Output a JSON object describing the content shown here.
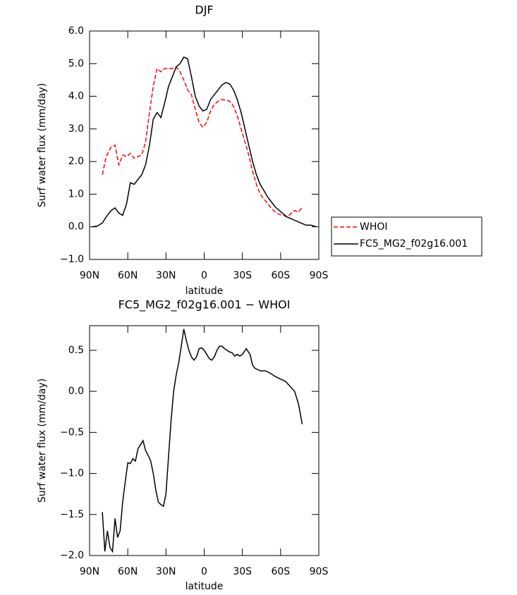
{
  "chart_data": [
    {
      "type": "line",
      "title": "DJF",
      "x_label": "latitude",
      "y_label": "Surf water flux (mm/day)",
      "x": [
        88,
        84,
        80,
        77,
        73,
        70,
        67,
        64,
        61,
        58,
        55,
        52,
        49,
        46,
        43,
        40,
        37,
        34,
        31,
        28,
        25,
        22,
        19,
        16,
        13,
        10,
        7,
        4,
        1,
        -2,
        -5,
        -8,
        -11,
        -14,
        -17,
        -20,
        -23,
        -26,
        -29,
        -32,
        -35,
        -38,
        -41,
        -44,
        -47,
        -50,
        -53,
        -56,
        -59,
        -62,
        -65,
        -68,
        -71,
        -74,
        -77,
        -80,
        -84,
        -88
      ],
      "series": [
        {
          "name": "WHOI",
          "color": "#ff0000",
          "dash": true,
          "values": [
            null,
            null,
            1.6,
            2.15,
            2.45,
            2.5,
            1.9,
            2.2,
            2.15,
            2.25,
            2.1,
            2.15,
            2.2,
            2.6,
            3.5,
            4.3,
            4.85,
            4.75,
            4.85,
            4.85,
            4.85,
            4.9,
            4.75,
            4.5,
            4.2,
            4.05,
            3.6,
            3.2,
            3.05,
            3.2,
            3.55,
            3.75,
            3.85,
            3.9,
            3.88,
            3.85,
            3.7,
            3.4,
            3.0,
            2.6,
            2.2,
            1.7,
            1.3,
            1.0,
            0.85,
            0.7,
            0.55,
            0.45,
            0.38,
            0.35,
            0.3,
            0.4,
            0.5,
            0.45,
            0.6,
            null,
            null,
            null
          ]
        },
        {
          "name": "FC5_MG2_f02g16.001",
          "color": "#000000",
          "dash": false,
          "values": [
            0.0,
            0.02,
            0.12,
            0.3,
            0.5,
            0.58,
            0.42,
            0.35,
            0.7,
            1.35,
            1.3,
            1.45,
            1.6,
            1.9,
            2.5,
            3.3,
            3.5,
            3.35,
            3.8,
            4.3,
            4.6,
            4.9,
            5.0,
            5.2,
            5.15,
            4.6,
            4.0,
            3.7,
            3.55,
            3.6,
            3.9,
            4.05,
            4.2,
            4.35,
            4.42,
            4.38,
            4.2,
            3.9,
            3.5,
            3.0,
            2.5,
            2.0,
            1.6,
            1.3,
            1.1,
            0.9,
            0.75,
            0.6,
            0.5,
            0.4,
            0.3,
            0.25,
            0.2,
            0.15,
            0.1,
            0.05,
            0.05,
            0.0
          ]
        }
      ],
      "xlim": [
        90,
        -90
      ],
      "xticks": [
        {
          "value": 90,
          "label": "90N"
        },
        {
          "value": 60,
          "label": "60N"
        },
        {
          "value": 30,
          "label": "30N"
        },
        {
          "value": 0,
          "label": "0"
        },
        {
          "value": -30,
          "label": "30S"
        },
        {
          "value": -60,
          "label": "60S"
        },
        {
          "value": -90,
          "label": "90S"
        }
      ],
      "ylim": [
        -1,
        6
      ],
      "yticks": [
        {
          "value": -1,
          "label": "−1.0"
        },
        {
          "value": 0,
          "label": "0.0"
        },
        {
          "value": 1,
          "label": "1.0"
        },
        {
          "value": 2,
          "label": "2.0"
        },
        {
          "value": 3,
          "label": "3.0"
        },
        {
          "value": 4,
          "label": "4.0"
        },
        {
          "value": 5,
          "label": "5.0"
        },
        {
          "value": 6,
          "label": "6.0"
        }
      ],
      "legend": "right"
    },
    {
      "type": "line",
      "title": "FC5_MG2_f02g16.001 − WHOI",
      "x_label": "latitude",
      "y_label": "Surf water flux (mm/day)",
      "x": [
        80,
        78,
        76,
        74,
        72,
        70,
        68,
        66,
        64,
        62,
        60,
        58,
        56,
        54,
        52,
        50,
        48,
        46,
        44,
        42,
        40,
        38,
        36,
        34,
        32,
        30,
        28,
        26,
        24,
        22,
        20,
        18,
        16,
        14,
        12,
        10,
        8,
        6,
        4,
        2,
        0,
        -2,
        -4,
        -6,
        -8,
        -10,
        -12,
        -14,
        -16,
        -18,
        -20,
        -22,
        -24,
        -26,
        -28,
        -30,
        -33,
        -36,
        -38,
        -40,
        -44,
        -48,
        -52,
        -56,
        -60,
        -64,
        -68,
        -71,
        -74,
        -77
      ],
      "color": "#000000",
      "values": [
        -1.47,
        -1.95,
        -1.7,
        -1.9,
        -1.95,
        -1.55,
        -1.78,
        -1.7,
        -1.35,
        -1.1,
        -0.87,
        -0.88,
        -0.82,
        -0.85,
        -0.7,
        -0.65,
        -0.6,
        -0.72,
        -0.78,
        -0.85,
        -1.0,
        -1.2,
        -1.35,
        -1.38,
        -1.4,
        -1.25,
        -0.8,
        -0.35,
        0.0,
        0.2,
        0.35,
        0.55,
        0.76,
        0.62,
        0.5,
        0.42,
        0.38,
        0.42,
        0.52,
        0.53,
        0.5,
        0.45,
        0.4,
        0.38,
        0.42,
        0.5,
        0.55,
        0.55,
        0.52,
        0.5,
        0.48,
        0.47,
        0.43,
        0.45,
        0.43,
        0.45,
        0.52,
        0.45,
        0.32,
        0.28,
        0.25,
        0.25,
        0.22,
        0.18,
        0.15,
        0.12,
        0.05,
        0.0,
        -0.15,
        -0.4
      ],
      "xlim": [
        90,
        -90
      ],
      "xticks": [
        {
          "value": 90,
          "label": "90N"
        },
        {
          "value": 60,
          "label": "60N"
        },
        {
          "value": 30,
          "label": "30N"
        },
        {
          "value": 0,
          "label": "0"
        },
        {
          "value": -30,
          "label": "30S"
        },
        {
          "value": -60,
          "label": "60S"
        },
        {
          "value": -90,
          "label": "90S"
        }
      ],
      "ylim": [
        -2,
        0.8
      ],
      "yticks": [
        {
          "value": -2,
          "label": "−2.0"
        },
        {
          "value": -1.5,
          "label": "−1.5"
        },
        {
          "value": -1,
          "label": "−1.0"
        },
        {
          "value": -0.5,
          "label": "−0.5"
        },
        {
          "value": 0,
          "label": "0.0"
        },
        {
          "value": 0.5,
          "label": "0.5"
        }
      ]
    }
  ]
}
